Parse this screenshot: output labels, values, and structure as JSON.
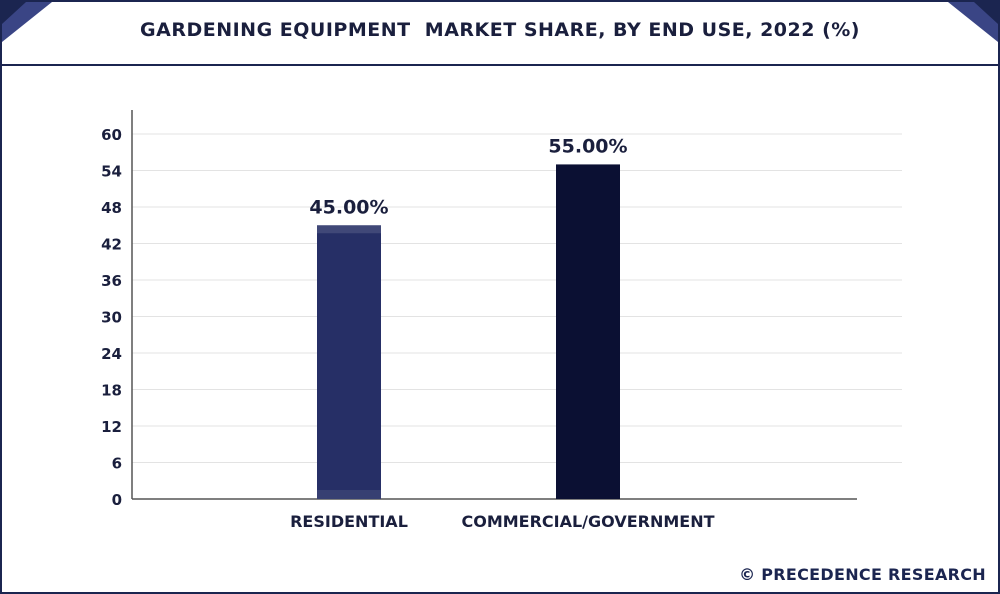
{
  "title": "GARDENING EQUIPMENT  MARKET SHARE, BY END USE, 2022 (%)",
  "brand": "© PRECEDENCE RESEARCH",
  "colors": {
    "frame": "#1b2550",
    "residential": "#262f66",
    "commercial": "#0b1033",
    "grid": "#e3e3e3",
    "text": "#1a1f3d"
  },
  "chart_data": {
    "type": "bar",
    "categories": [
      "RESIDENTIAL",
      "COMMERCIAL/GOVERNMENT"
    ],
    "values": [
      45.0,
      55.0
    ],
    "data_labels": [
      "45.00%",
      "55.00%"
    ],
    "title": "GARDENING EQUIPMENT  MARKET SHARE, BY END USE, 2022 (%)",
    "xlabel": "",
    "ylabel": "",
    "ylim": [
      0,
      60
    ],
    "yticks": [
      0,
      6,
      12,
      18,
      24,
      30,
      36,
      42,
      48,
      54,
      60
    ],
    "grid": true,
    "legend": "none"
  }
}
